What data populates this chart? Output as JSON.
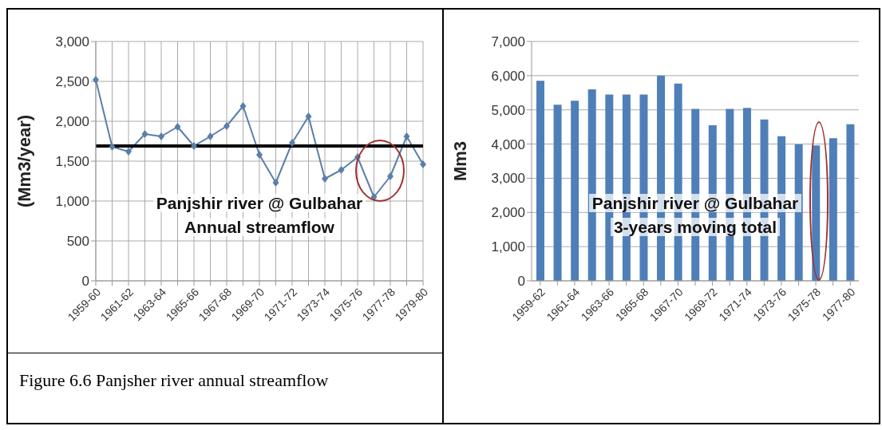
{
  "chart_data": [
    {
      "type": "line",
      "title": "Panjshir river @ Gulbahar",
      "subtitle": "Annual streamflow",
      "ylabel": "(Mm3/year)",
      "categories": [
        "1959-60",
        null,
        "1961-62",
        null,
        "1963-64",
        null,
        "1965-66",
        null,
        "1967-68",
        null,
        "1969-70",
        null,
        "1971-72",
        null,
        "1973-74",
        null,
        "1975-76",
        null,
        "1977-78",
        null,
        "1979-80"
      ],
      "series": [
        {
          "color": "#5a7fa8",
          "values": [
            2520,
            1680,
            1620,
            1840,
            1810,
            1930,
            1690,
            1810,
            1940,
            2190,
            1580,
            1230,
            1730,
            2060,
            1280,
            1390,
            1550,
            1050,
            1310,
            1810,
            1460
          ]
        }
      ],
      "ylim": [
        0,
        3000
      ],
      "yticks": [
        {
          "value": 0,
          "label": "0"
        },
        500,
        {
          "value": 1000,
          "label": "1,000"
        },
        {
          "value": 1500,
          "label": "1,500"
        },
        {
          "value": 2000,
          "label": "2,000"
        },
        {
          "value": 2500,
          "label": "2,500"
        },
        {
          "value": 3000,
          "label": "3,000"
        }
      ],
      "grid": true,
      "marker": "diamond",
      "ref_lines": [
        {
          "axis": "y",
          "value": 1690,
          "color": "#000000"
        }
      ],
      "annotations": [
        "Figure 6.6 Panjsher river annual streamflow"
      ]
    },
    {
      "type": "bar",
      "title": "Panjshir river @ Gulbahar",
      "subtitle": "3-years moving total",
      "ylabel": "Mm3",
      "categories": [
        "1959-62",
        null,
        "1961-64",
        null,
        "1963-66",
        null,
        "1965-68",
        null,
        "1967-70",
        null,
        "1969-72",
        null,
        "1971-74",
        null,
        "1973-76",
        null,
        "1975-78",
        null,
        "1977-80"
      ],
      "series": [
        {
          "color": "#4f7fb8",
          "values": [
            5850,
            5150,
            5270,
            5600,
            5450,
            5450,
            5450,
            6000,
            5770,
            5030,
            4550,
            5030,
            5060,
            4720,
            4230,
            3990,
            3960,
            4170,
            4580
          ]
        }
      ],
      "ylim": [
        0,
        7000
      ],
      "yticks": [
        {
          "value": 0,
          "label": "0"
        },
        {
          "value": 1000,
          "label": "1,000"
        },
        {
          "value": 2000,
          "label": "2,000"
        },
        {
          "value": 3000,
          "label": "3,000"
        },
        {
          "value": 4000,
          "label": "4,000"
        },
        {
          "value": 5000,
          "label": "5,000"
        },
        {
          "value": 6000,
          "label": "6,000"
        },
        {
          "value": 7000,
          "label": "7,000"
        }
      ],
      "grid": "y"
    }
  ]
}
